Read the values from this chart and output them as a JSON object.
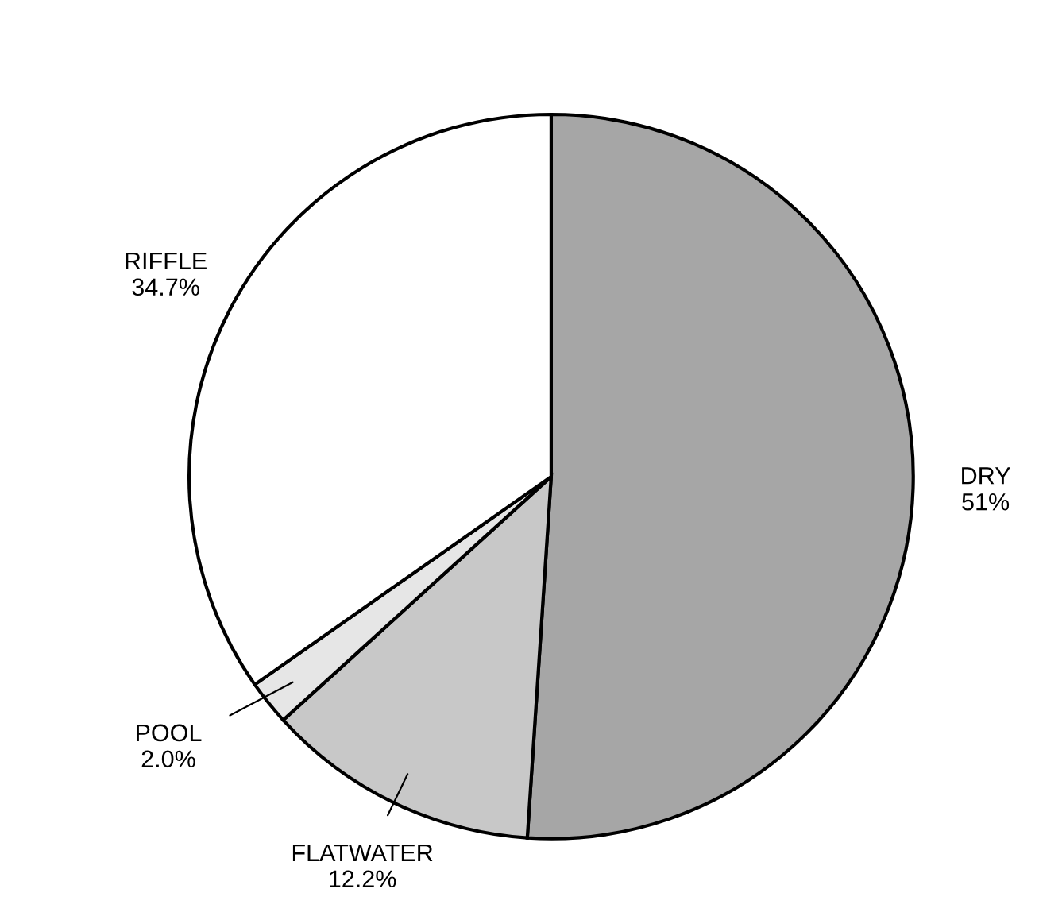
{
  "chart_data": {
    "type": "pie",
    "categories": [
      "DRY",
      "FLATWATER",
      "POOL",
      "RIFFLE"
    ],
    "values": [
      51,
      12.2,
      2.0,
      34.7
    ],
    "value_labels": [
      "51%",
      "12.2%",
      "2.0%",
      "34.7%"
    ],
    "colors": [
      "#a6a6a6",
      "#c8c8c8",
      "#e6e6e6",
      "#ffffff"
    ],
    "legend": false
  }
}
